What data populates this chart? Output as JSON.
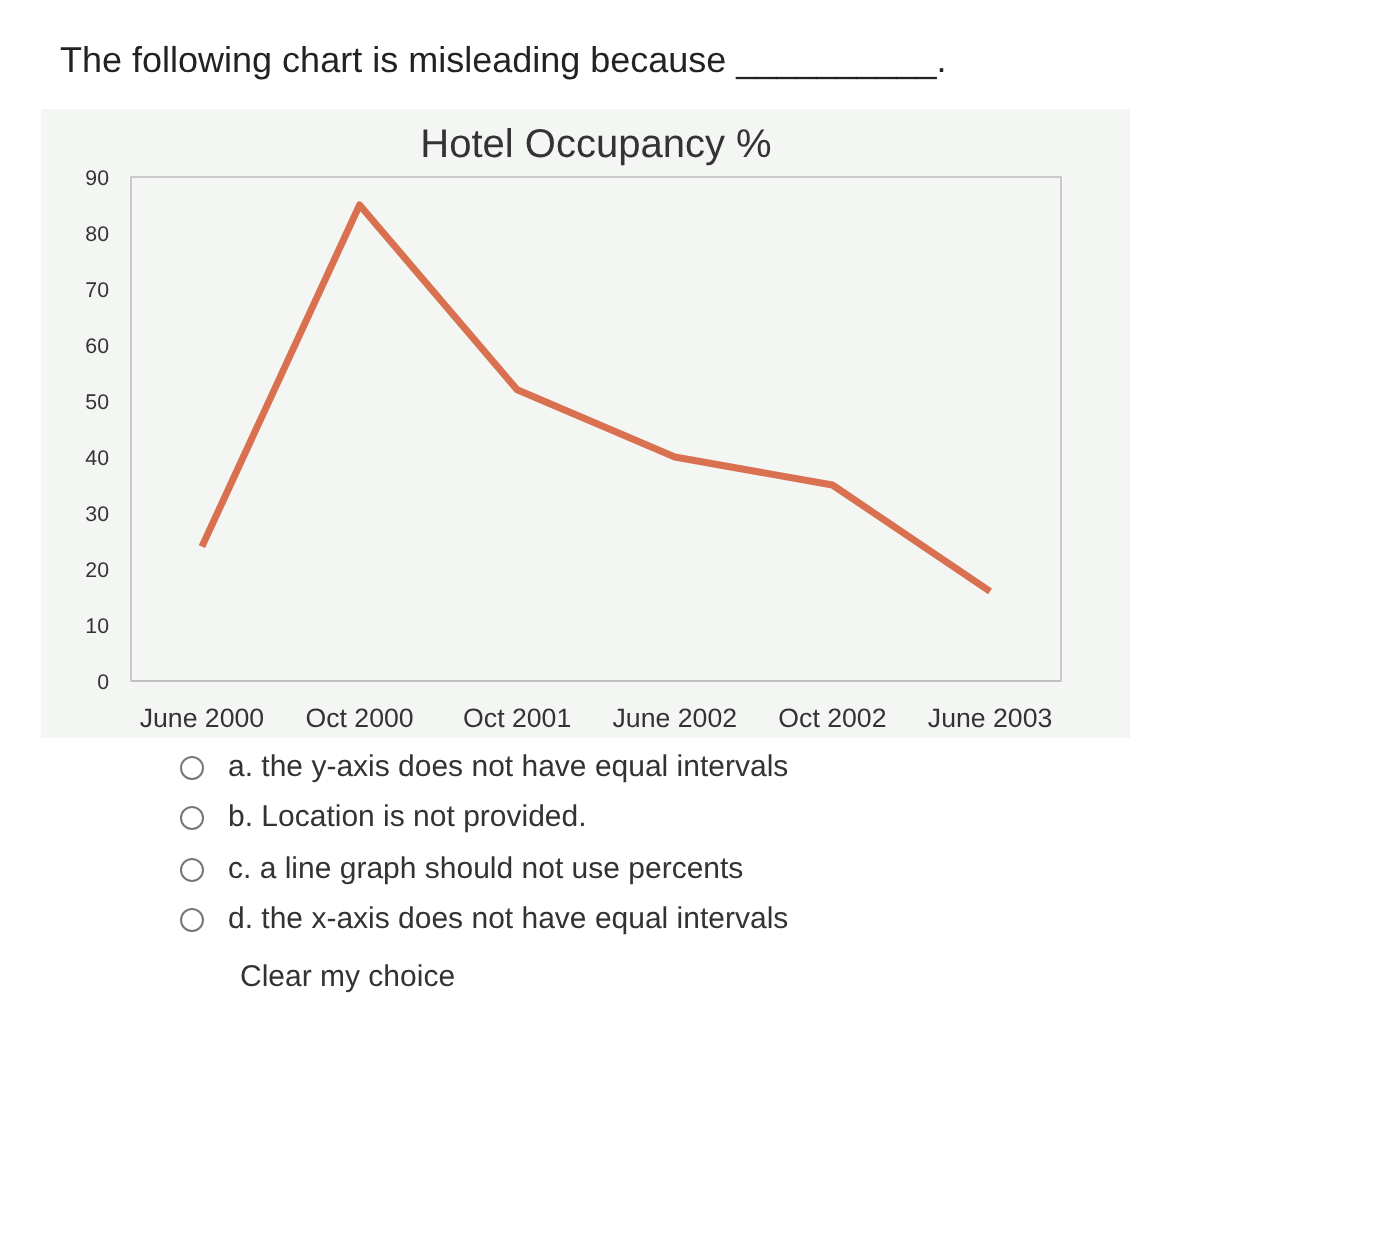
{
  "chart_data": {
    "type": "line",
    "title": "Hotel Occupancy %",
    "categories": [
      "June 2000",
      "Oct 2000",
      "Oct 2001",
      "June 2002",
      "Oct 2002",
      "June 2003"
    ],
    "series": [
      {
        "color": "#d9704f",
        "values": [
          24,
          85,
          52,
          40,
          35,
          16
        ]
      }
    ],
    "ylim": [
      0,
      90
    ],
    "yticks": [
      0,
      10,
      20,
      30,
      40,
      50,
      60,
      70,
      80,
      90
    ],
    "grid": false,
    "marker": "none",
    "line_style": "solid",
    "annotations": [
      "The following chart is misleading because __________.",
      "a.  the y-axis does not have equal intervals",
      "b.  Location is not provided.",
      "c.  a line graph should not use percents",
      "d.  the x-axis does not have equal intervals",
      "Clear my choice"
    ]
  }
}
